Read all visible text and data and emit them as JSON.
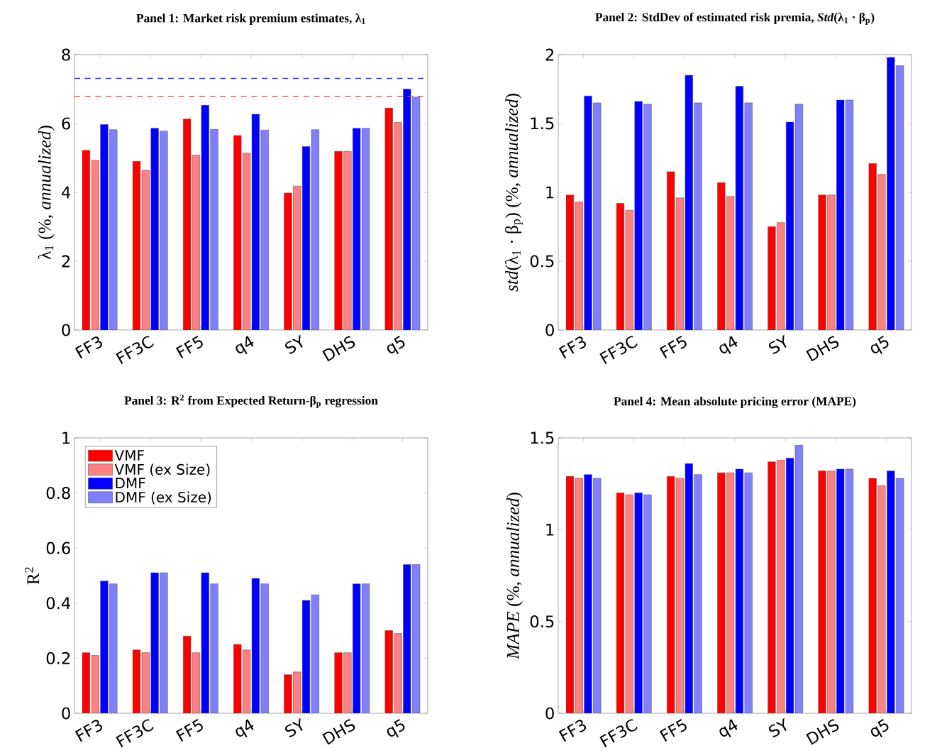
{
  "chart_data": [
    {
      "type": "bar",
      "title": "Panel 1: Market risk premium estimates, λ$_{1}$",
      "ylabel": "λ$_{1}$ (%, *annualized*)",
      "categories": [
        "FF3",
        "FF3C",
        "FF5",
        "q4",
        "SY",
        "DHS",
        "q5"
      ],
      "series": [
        {
          "color": "#ff0000",
          "values": [
            5.22,
            4.9,
            6.13,
            5.65,
            3.98,
            5.19,
            6.45
          ]
        },
        {
          "color": "#ff8080",
          "values": [
            4.93,
            4.64,
            5.08,
            5.14,
            4.18,
            5.19,
            6.03
          ]
        },
        {
          "color": "#0000ff",
          "values": [
            5.97,
            5.86,
            6.53,
            6.27,
            5.33,
            5.86,
            7.0
          ]
        },
        {
          "color": "#8080ff",
          "values": [
            5.82,
            5.78,
            5.83,
            5.81,
            5.82,
            5.86,
            6.77
          ]
        }
      ],
      "ylim": [
        0,
        8
      ],
      "yticks": [
        0,
        2,
        4,
        6,
        8
      ],
      "ref_lines": [
        {
          "axis": "y",
          "value": 7.31,
          "color": "#3333ff",
          "line_style": "dashed"
        },
        {
          "axis": "y",
          "value": 6.79,
          "color": "#ff3333",
          "line_style": "dashed"
        }
      ]
    },
    {
      "type": "bar",
      "title": "Panel 2: StdDev of estimated risk premia, *Std*(λ$_{1}$ · β$_{p}$)",
      "ylabel": "*std*(λ$_{1}$ · β$_{p}$) (%, *annualized*)",
      "categories": [
        "FF3",
        "FF3C",
        "FF5",
        "q4",
        "SY",
        "DHS",
        "q5"
      ],
      "series": [
        {
          "color": "#ff0000",
          "values": [
            0.98,
            0.92,
            1.15,
            1.07,
            0.75,
            0.98,
            1.21
          ]
        },
        {
          "color": "#ff8080",
          "values": [
            0.93,
            0.87,
            0.96,
            0.97,
            0.78,
            0.98,
            1.13
          ]
        },
        {
          "color": "#0000ff",
          "values": [
            1.7,
            1.66,
            1.85,
            1.77,
            1.51,
            1.67,
            1.98
          ]
        },
        {
          "color": "#8080ff",
          "values": [
            1.65,
            1.64,
            1.65,
            1.65,
            1.64,
            1.67,
            1.92
          ]
        }
      ],
      "ylim": [
        0,
        2
      ],
      "yticks": [
        0,
        0.5,
        1,
        1.5,
        2
      ]
    },
    {
      "type": "bar",
      "title": "Panel 3: R$^{2}$ from Expected Return-β$_{p}$ regression",
      "ylabel": "R$^{2}$",
      "categories": [
        "FF3",
        "FF3C",
        "FF5",
        "q4",
        "SY",
        "DHS",
        "q5"
      ],
      "series": [
        {
          "name": "VMF",
          "color": "#ff0000",
          "values": [
            0.22,
            0.23,
            0.28,
            0.25,
            0.14,
            0.22,
            0.3
          ]
        },
        {
          "name": "VMF (ex Size)",
          "color": "#ff8080",
          "values": [
            0.21,
            0.22,
            0.22,
            0.23,
            0.15,
            0.22,
            0.29
          ]
        },
        {
          "name": "DMF",
          "color": "#0000ff",
          "values": [
            0.48,
            0.51,
            0.51,
            0.49,
            0.41,
            0.47,
            0.54
          ]
        },
        {
          "name": "DMF (ex Size)",
          "color": "#8080ff",
          "values": [
            0.47,
            0.51,
            0.47,
            0.47,
            0.43,
            0.47,
            0.54
          ]
        }
      ],
      "ylim": [
        0,
        1
      ],
      "yticks": [
        0,
        0.2,
        0.4,
        0.6,
        0.8,
        1
      ],
      "legend": "top left"
    },
    {
      "type": "bar",
      "title": "Panel 4: Mean absolute pricing error (MAPE)",
      "ylabel": "*MAPE* (%, *annualized*)",
      "categories": [
        "FF3",
        "FF3C",
        "FF5",
        "q4",
        "SY",
        "DHS",
        "q5"
      ],
      "series": [
        {
          "color": "#ff0000",
          "values": [
            1.29,
            1.2,
            1.29,
            1.31,
            1.37,
            1.32,
            1.28
          ]
        },
        {
          "color": "#ff8080",
          "values": [
            1.28,
            1.19,
            1.28,
            1.31,
            1.38,
            1.32,
            1.24
          ]
        },
        {
          "color": "#0000ff",
          "values": [
            1.3,
            1.2,
            1.36,
            1.33,
            1.39,
            1.33,
            1.32
          ]
        },
        {
          "color": "#8080ff",
          "values": [
            1.28,
            1.19,
            1.3,
            1.31,
            1.46,
            1.33,
            1.28
          ]
        }
      ],
      "ylim": [
        0,
        1.5
      ],
      "yticks": [
        0,
        0.5,
        1,
        1.5
      ]
    }
  ]
}
